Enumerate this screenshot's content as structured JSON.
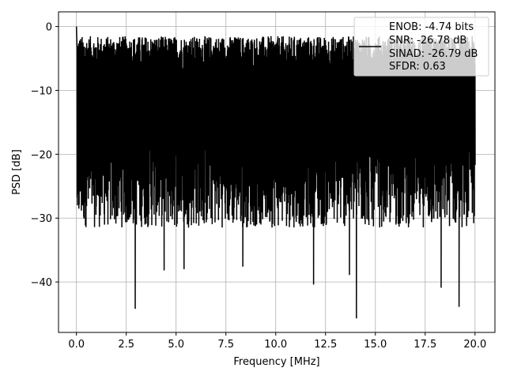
{
  "chart_data": {
    "type": "line",
    "title": "",
    "xlabel": "Frequency [MHz]",
    "ylabel": "PSD [dB]",
    "xlim": [
      -0.9,
      21.0
    ],
    "ylim": [
      -47.9,
      2.3
    ],
    "x_ticks": [
      0.0,
      2.5,
      5.0,
      7.5,
      10.0,
      12.5,
      15.0,
      17.5,
      20.0
    ],
    "x_tick_labels": [
      "0.0",
      "2.5",
      "5.0",
      "7.5",
      "10.0",
      "12.5",
      "15.0",
      "17.5",
      "20.0"
    ],
    "y_ticks": [
      0,
      -10,
      -20,
      -30,
      -40
    ],
    "y_tick_labels": [
      "0",
      "−10",
      "−20",
      "−30",
      "−40"
    ],
    "grid": true,
    "legend_position": "top-right",
    "line_color": "#000000",
    "legend_lines": [
      "ENOB: -4.74 bits",
      "SNR: -26.78 dB",
      "SINAD: -26.79 dB",
      "SFDR: 0.63"
    ],
    "series": [
      {
        "x_start": 0.0,
        "x_end": 20.0,
        "peak": {
          "x": 0.0,
          "y": 0.0
        },
        "band": {
          "upper_min": -7.0,
          "upper_max": -1.5,
          "lower_min": -31.5,
          "lower_max": -16.0
        },
        "notable_dips": [
          {
            "x": 2.95,
            "y": -44.2
          },
          {
            "x": 4.4,
            "y": -38.2
          },
          {
            "x": 5.4,
            "y": -38.0
          },
          {
            "x": 8.35,
            "y": -37.6
          },
          {
            "x": 11.9,
            "y": -40.4
          },
          {
            "x": 13.7,
            "y": -38.9
          },
          {
            "x": 14.05,
            "y": -45.7
          },
          {
            "x": 18.3,
            "y": -40.9
          },
          {
            "x": 19.2,
            "y": -43.9
          }
        ]
      }
    ]
  }
}
